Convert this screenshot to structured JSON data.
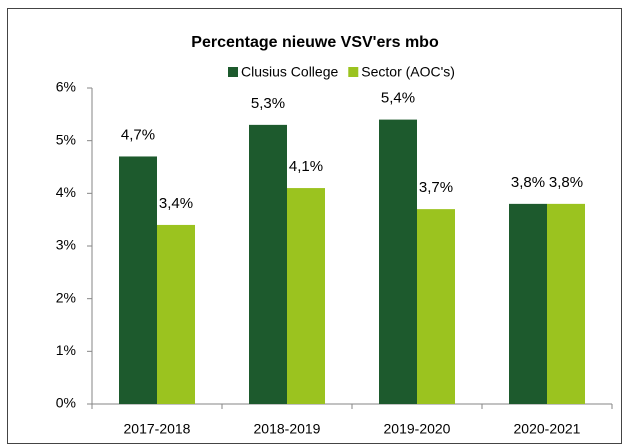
{
  "chart_data": {
    "type": "bar",
    "title": "Percentage nieuwe VSV'ers mbo",
    "categories": [
      "2017-2018",
      "2018-2019",
      "2019-2020",
      "2020-2021"
    ],
    "series": [
      {
        "name": "Clusius College",
        "color": "#1d5a2d",
        "values": [
          4.7,
          5.3,
          5.4,
          3.8
        ],
        "value_labels": [
          "4,7%",
          "5,3%",
          "5,4%",
          "3,8%"
        ]
      },
      {
        "name": "Sector (AOC's)",
        "color": "#9bc31f",
        "values": [
          3.4,
          4.1,
          3.7,
          3.8
        ],
        "value_labels": [
          "3,4%",
          "4,1%",
          "3,7%",
          "3,8%"
        ]
      }
    ],
    "ylim": [
      0,
      6
    ],
    "yticks": [
      {
        "value": 0,
        "label": "0%"
      },
      {
        "value": 1,
        "label": "1%"
      },
      {
        "value": 2,
        "label": "2%"
      },
      {
        "value": 3,
        "label": "3%"
      },
      {
        "value": 4,
        "label": "4%"
      },
      {
        "value": 5,
        "label": "5%"
      },
      {
        "value": 6,
        "label": "6%"
      }
    ],
    "grid": false,
    "legend": "top"
  }
}
